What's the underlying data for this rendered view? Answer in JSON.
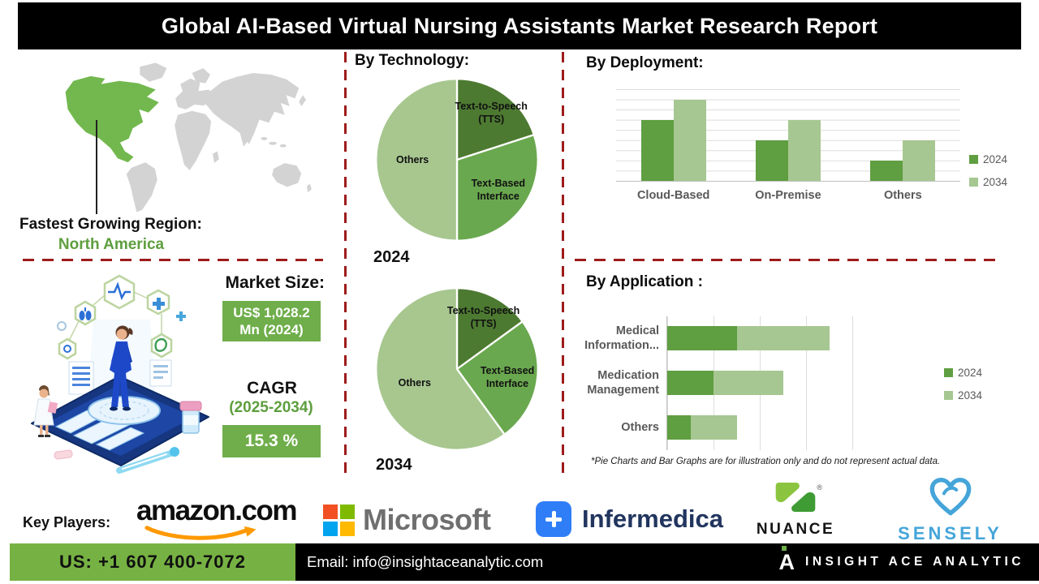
{
  "title": "Global AI-Based Virtual Nursing Assistants Market Research Report",
  "map": {
    "region_label": "Fastest Growing Region:",
    "region_value": "North America"
  },
  "market": {
    "size_label": "Market Size:",
    "size_value": "US$ 1,028.2 Mn (2024)",
    "cagr_label": "CAGR",
    "cagr_period": "(2025-2034)",
    "cagr_value": "15.3 %"
  },
  "chart_data": [
    {
      "id": "tech-2024",
      "type": "pie",
      "section_title": "By Technology:",
      "year_label": "2024",
      "labels": [
        "Text-to-Speech (TTS)",
        "Text-Based Interface",
        "Others"
      ],
      "values": [
        20,
        30,
        50
      ],
      "colors": [
        "#4d7a31",
        "#6aa84f",
        "#a7c78f"
      ],
      "legend_position": "none"
    },
    {
      "id": "tech-2034",
      "type": "pie",
      "year_label": "2034",
      "labels": [
        "Text-to-Speech (TTS)",
        "Text-Based Interface",
        "Others"
      ],
      "values": [
        15,
        25,
        60
      ],
      "colors": [
        "#4d7a31",
        "#6aa84f",
        "#a7c78f"
      ],
      "legend_position": "none"
    },
    {
      "id": "deployment",
      "type": "bar",
      "section_title": "By Deployment:",
      "categories": [
        "Cloud-Based",
        "On-Premise",
        "Others"
      ],
      "series": [
        {
          "name": "2024",
          "color": "#5f9e41",
          "values": [
            6,
            4,
            2
          ]
        },
        {
          "name": "2034",
          "color": "#a6c791",
          "values": [
            8,
            6,
            4
          ]
        }
      ],
      "ylim": [
        0,
        9
      ],
      "grid": true,
      "legend_position": "right"
    },
    {
      "id": "application",
      "type": "bar-horizontal-stacked",
      "section_title": "By Application :",
      "categories": [
        "Medical Information...",
        "Medication Management",
        "Others"
      ],
      "series": [
        {
          "name": "2024",
          "color": "#5f9e41",
          "values": [
            1.5,
            1.0,
            0.5
          ]
        },
        {
          "name": "2034",
          "color": "#a6c791",
          "values": [
            2.0,
            1.5,
            1.0
          ]
        }
      ],
      "xlim": [
        0,
        5
      ],
      "grid": true,
      "legend_position": "right"
    }
  ],
  "footnote": "*Pie Charts and Bar Graphs are for illustration only and do not represent actual data.",
  "players": {
    "label": "Key Players:",
    "items": [
      {
        "name": "amazon.com"
      },
      {
        "name": "Microsoft"
      },
      {
        "name": "Infermedica"
      },
      {
        "name": "Nuance",
        "mark": "®"
      },
      {
        "name": "Sensely"
      }
    ]
  },
  "footer": {
    "phone": "US: +1 607 400-7072",
    "email": "Email: info@insightaceanalytic.com",
    "logo_letter": "A",
    "brand": "INSIGHT ACE ANALYTIC"
  },
  "colors": {
    "dash_red": "#9e1b1b",
    "footer_green": "#76b243",
    "box_green": "#6fae4b",
    "na_green": "#72b84e",
    "map_gray": "#d3d3d3"
  }
}
